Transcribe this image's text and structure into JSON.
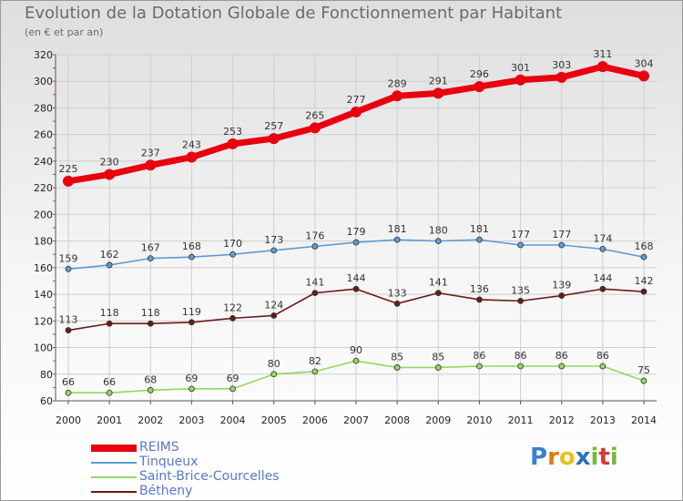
{
  "title": "Evolution de la Dotation Globale de Fonctionnement par Habitant",
  "subtitle": "(en € et par an)",
  "logo": {
    "letters": [
      "P",
      "r",
      "o",
      "x",
      "i",
      "t",
      "i"
    ],
    "colors": [
      "#3a7fd0",
      "#e07b16",
      "#e8c21c",
      "#2f6fc0",
      "#7ab83a",
      "#d8382e",
      "#7ab83a"
    ]
  },
  "chart_data": {
    "type": "line",
    "title": "Evolution de la Dotation Globale de Fonctionnement par Habitant",
    "subtitle": "(en € et par an)",
    "xlabel": "",
    "ylabel": "",
    "x": [
      "2000",
      "2001",
      "2002",
      "2003",
      "2004",
      "2005",
      "2006",
      "2007",
      "2008",
      "2009",
      "2010",
      "2011",
      "2012",
      "2013",
      "2014"
    ],
    "ylim": [
      60,
      320
    ],
    "yticks": [
      "60",
      "80",
      "100",
      "120",
      "140",
      "160",
      "180",
      "200",
      "220",
      "240",
      "260",
      "280",
      "300",
      "320"
    ],
    "legend_position": "bottom-left",
    "grid": true,
    "series": [
      {
        "name": "REIMS",
        "color": "#e8000f",
        "values": [
          225,
          230,
          237,
          243,
          253,
          257,
          265,
          277,
          289,
          291,
          296,
          301,
          303,
          311,
          304
        ],
        "labels": [
          "225",
          "230",
          "237",
          "243",
          "253",
          "257",
          "265",
          "277",
          "289",
          "291",
          "296",
          "301",
          "303",
          "311",
          "304"
        ]
      },
      {
        "name": "Tinqueux",
        "color": "#5e9bd2",
        "values": [
          159,
          162,
          167,
          168,
          170,
          173,
          176,
          179,
          181,
          180,
          181,
          177,
          177,
          174,
          168
        ],
        "labels": [
          "159",
          "162",
          "167",
          "168",
          "170",
          "173",
          "176",
          "179",
          "181",
          "180",
          "181",
          "177",
          "177",
          "174",
          "168"
        ]
      },
      {
        "name": "Saint-Brice-Courcelles",
        "color": "#90d860",
        "values": [
          66,
          66,
          68,
          69,
          69,
          80,
          82,
          90,
          85,
          85,
          86,
          86,
          86,
          86,
          75
        ],
        "labels": [
          "66",
          "66",
          "68",
          "69",
          "69",
          "80",
          "82",
          "90",
          "85",
          "85",
          "86",
          "86",
          "86",
          "86",
          "75"
        ]
      },
      {
        "name": "Bétheny",
        "color": "#6b1a1a",
        "values": [
          113,
          118,
          118,
          119,
          122,
          124,
          141,
          144,
          133,
          141,
          136,
          135,
          139,
          144,
          142
        ],
        "labels": [
          "113",
          "118",
          "118",
          "119",
          "122",
          "124",
          "141",
          "144",
          "133",
          "141",
          "136",
          "135",
          "139",
          "144",
          "142"
        ]
      }
    ]
  }
}
